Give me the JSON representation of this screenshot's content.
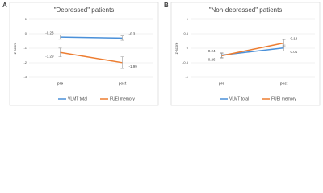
{
  "chart_data": [
    {
      "type": "line",
      "panel_label": "A",
      "title": "\"Depressed\" patients",
      "y_label": "z-score",
      "categories": [
        "pre",
        "post"
      ],
      "ylim": [
        -3,
        1
      ],
      "yticks": [
        -3,
        -2,
        -1,
        0,
        1
      ],
      "grid": true,
      "series": [
        {
          "name": "VLMT total",
          "color": "#4a90d9",
          "values": [
            -0.23,
            -0.3
          ],
          "errors": [
            0.15,
            0.15
          ]
        },
        {
          "name": "FUEI memory",
          "color": "#ed7d31",
          "values": [
            -1.29,
            -1.99
          ],
          "errors": [
            0.3,
            0.4
          ]
        }
      ]
    },
    {
      "type": "line",
      "panel_label": "B",
      "title": "\"Non-depressed\" patients",
      "y_label": "z-score",
      "categories": [
        "pre",
        "post"
      ],
      "ylim": [
        -1,
        1
      ],
      "yticks": [
        -1,
        -0.5,
        0,
        0.5,
        1
      ],
      "grid": true,
      "series": [
        {
          "name": "VLMT total",
          "color": "#4a90d9",
          "values": [
            -0.24,
            0.01
          ],
          "errors": [
            0.08,
            0.1
          ]
        },
        {
          "name": "FUEI memory",
          "color": "#ed7d31",
          "values": [
            -0.26,
            0.18
          ],
          "errors": [
            0.08,
            0.12
          ]
        }
      ]
    }
  ]
}
